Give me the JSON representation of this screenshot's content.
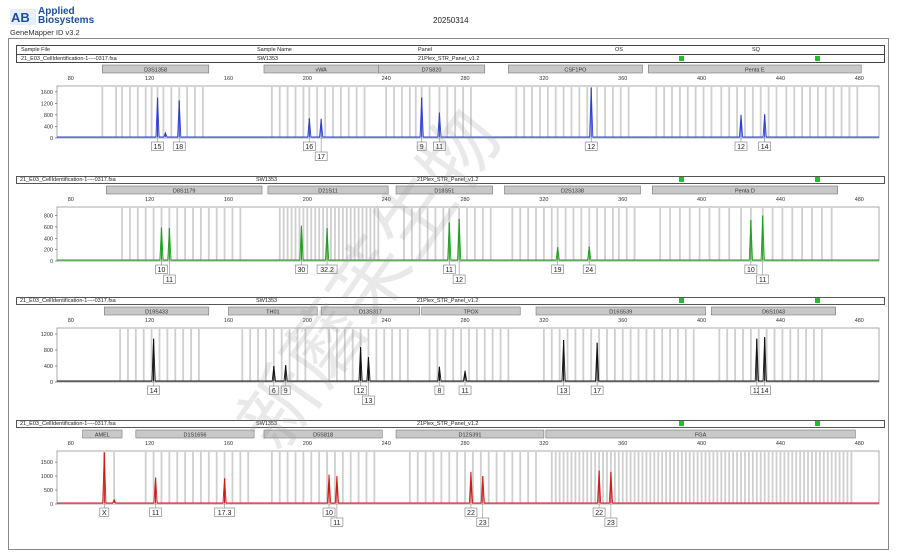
{
  "header": {
    "logo_text_line1": "Applied",
    "logo_text_line2": "Biosystems",
    "logo_mark": "AB",
    "app_version": "GeneMapper ID v3.2",
    "report_date": "20250314",
    "columns": {
      "sample_file": "Sample File",
      "sample_name": "Sample Name",
      "panel": "Panel",
      "os": "OS",
      "sq": "SQ"
    },
    "sample_file": "21_E03_CellIdentification-1----0317.fsa",
    "sample_name": "SW1353",
    "panel_name": "21Plex_STR_Panel_v1.2",
    "status_color": "#22c12a"
  },
  "watermark_text": "新蘑苿生物",
  "chart_data": [
    {
      "type": "line",
      "dye": "blue",
      "color": "#2b3fd6",
      "sample_file": "21_E03_CellIdentification-1----0317.fsa",
      "sample_name": "SW1353",
      "panel": "21Plex_STR_Panel_v1.2",
      "x_ticks": [
        80,
        120,
        160,
        200,
        240,
        280,
        320,
        360,
        400,
        440,
        480
      ],
      "xlim": [
        73,
        490
      ],
      "y_ticks": [
        0,
        400,
        800,
        1200,
        1600
      ],
      "ylim": [
        0,
        1800
      ],
      "loci": [
        {
          "name": "D3S1358",
          "start": 96,
          "end": 150
        },
        {
          "name": "vWA",
          "start": 178,
          "end": 236
        },
        {
          "name": "D7S820",
          "start": 236,
          "end": 290
        },
        {
          "name": "CSF1PO",
          "start": 302,
          "end": 370
        },
        {
          "name": "Penta E",
          "start": 373,
          "end": 481
        }
      ],
      "peaks": [
        {
          "x": 124,
          "height": 1400
        },
        {
          "x": 128,
          "height": 180
        },
        {
          "x": 135,
          "height": 1300
        },
        {
          "x": 201,
          "height": 680
        },
        {
          "x": 207,
          "height": 660
        },
        {
          "x": 258,
          "height": 1400
        },
        {
          "x": 267,
          "height": 880
        },
        {
          "x": 344,
          "height": 1750
        },
        {
          "x": 420,
          "height": 800
        },
        {
          "x": 432,
          "height": 820
        }
      ],
      "allele_labels": [
        {
          "x": 124,
          "label": "15",
          "row": 0
        },
        {
          "x": 135,
          "label": "18",
          "row": 0
        },
        {
          "x": 201,
          "label": "16",
          "row": 0
        },
        {
          "x": 207,
          "label": "17",
          "row": 1
        },
        {
          "x": 258,
          "label": "9",
          "row": 0
        },
        {
          "x": 267,
          "label": "11",
          "row": 0
        },
        {
          "x": 344,
          "label": "12",
          "row": 0
        },
        {
          "x": 420,
          "label": "12",
          "row": 0
        },
        {
          "x": 432,
          "label": "14",
          "row": 0
        }
      ],
      "bins": [
        96,
        103,
        106,
        110,
        114,
        118,
        121,
        124,
        127,
        131,
        135,
        139,
        143,
        147,
        182,
        186,
        190,
        194,
        198,
        201,
        205,
        209,
        213,
        217,
        221,
        225,
        229,
        240,
        244,
        248,
        252,
        255,
        258,
        262,
        267,
        271,
        275,
        279,
        283,
        306,
        310,
        314,
        318,
        322,
        326,
        330,
        334,
        338,
        342,
        347,
        351,
        355,
        359,
        363,
        377,
        381,
        385,
        389,
        393,
        397,
        401,
        405,
        410,
        414,
        418,
        422,
        426,
        430,
        434,
        438,
        443,
        447,
        451,
        455,
        459,
        463,
        467,
        471,
        475,
        479
      ]
    },
    {
      "type": "line",
      "dye": "green",
      "color": "#1aa21a",
      "sample_file": "21_E03_CellIdentification-1----0317.fsa",
      "sample_name": "SW1353",
      "panel": "21Plex_STR_Panel_v1.2",
      "x_ticks": [
        80,
        120,
        160,
        200,
        240,
        280,
        320,
        360,
        400,
        440,
        480
      ],
      "xlim": [
        73,
        490
      ],
      "y_ticks": [
        0,
        200,
        400,
        600,
        800
      ],
      "ylim": [
        0,
        950
      ],
      "loci": [
        {
          "name": "D8S1179",
          "start": 98,
          "end": 177
        },
        {
          "name": "D21S11",
          "start": 180,
          "end": 241
        },
        {
          "name": "D18S51",
          "start": 245,
          "end": 294
        },
        {
          "name": "D2S1338",
          "start": 300,
          "end": 369
        },
        {
          "name": "Penta D",
          "start": 375,
          "end": 469
        }
      ],
      "peaks": [
        {
          "x": 126,
          "height": 590
        },
        {
          "x": 130,
          "height": 580
        },
        {
          "x": 197,
          "height": 620
        },
        {
          "x": 210,
          "height": 580
        },
        {
          "x": 272,
          "height": 680
        },
        {
          "x": 277,
          "height": 740
        },
        {
          "x": 327,
          "height": 240
        },
        {
          "x": 343,
          "height": 250
        },
        {
          "x": 425,
          "height": 720
        },
        {
          "x": 431,
          "height": 800
        }
      ],
      "allele_labels": [
        {
          "x": 126,
          "label": "10",
          "row": 0
        },
        {
          "x": 130,
          "label": "11",
          "row": 1
        },
        {
          "x": 197,
          "label": "30",
          "row": 0
        },
        {
          "x": 210,
          "label": "32.2",
          "row": 0
        },
        {
          "x": 272,
          "label": "11",
          "row": 0
        },
        {
          "x": 277,
          "label": "12",
          "row": 1
        },
        {
          "x": 327,
          "label": "19",
          "row": 0
        },
        {
          "x": 343,
          "label": "24",
          "row": 0
        },
        {
          "x": 425,
          "label": "10",
          "row": 0
        },
        {
          "x": 431,
          "label": "11",
          "row": 1
        }
      ],
      "bins": [
        106,
        110,
        114,
        118,
        122,
        126,
        130,
        134,
        138,
        142,
        146,
        150,
        154,
        158,
        162,
        166,
        186,
        188,
        190,
        192,
        194,
        196,
        198,
        200,
        202,
        204,
        206,
        208,
        210,
        212,
        214,
        216,
        218,
        220,
        222,
        224,
        226,
        228,
        230,
        232,
        234,
        236,
        249,
        253,
        257,
        261,
        265,
        269,
        272,
        277,
        281,
        285,
        289,
        293,
        304,
        308,
        312,
        316,
        320,
        324,
        327,
        331,
        335,
        339,
        343,
        347,
        351,
        355,
        358,
        362,
        366,
        379,
        384,
        389,
        394,
        399,
        404,
        409,
        414,
        420,
        425,
        431,
        436,
        441,
        446,
        451,
        456,
        461,
        466
      ]
    },
    {
      "type": "line",
      "dye": "black",
      "color": "#111111",
      "sample_file": "21_E03_CellIdentification-1----0317.fsa",
      "sample_name": "SW1353",
      "panel": "21Plex_STR_Panel_v1.2",
      "x_ticks": [
        80,
        120,
        160,
        200,
        240,
        280,
        320,
        360,
        400,
        440,
        480
      ],
      "xlim": [
        73,
        490
      ],
      "y_ticks": [
        0,
        400,
        800,
        1200
      ],
      "ylim": [
        0,
        1350
      ],
      "loci": [
        {
          "name": "D19S433",
          "start": 97,
          "end": 150
        },
        {
          "name": "TH01",
          "start": 160,
          "end": 205
        },
        {
          "name": "D13S317",
          "start": 207,
          "end": 257
        },
        {
          "name": "TPOX",
          "start": 258,
          "end": 308
        },
        {
          "name": "D16S539",
          "start": 316,
          "end": 402
        },
        {
          "name": "D6S1043",
          "start": 405,
          "end": 468
        }
      ],
      "peaks": [
        {
          "x": 122,
          "height": 1080
        },
        {
          "x": 183,
          "height": 400
        },
        {
          "x": 189,
          "height": 420
        },
        {
          "x": 227,
          "height": 870
        },
        {
          "x": 231,
          "height": 620
        },
        {
          "x": 267,
          "height": 380
        },
        {
          "x": 280,
          "height": 280
        },
        {
          "x": 330,
          "height": 1050
        },
        {
          "x": 347,
          "height": 980
        },
        {
          "x": 428,
          "height": 1080
        },
        {
          "x": 432,
          "height": 1120
        }
      ],
      "allele_labels": [
        {
          "x": 122,
          "label": "14",
          "row": 0
        },
        {
          "x": 183,
          "label": "6",
          "row": 0
        },
        {
          "x": 189,
          "label": "9",
          "row": 0
        },
        {
          "x": 227,
          "label": "12",
          "row": 0
        },
        {
          "x": 231,
          "label": "13",
          "row": 1
        },
        {
          "x": 267,
          "label": "8",
          "row": 0
        },
        {
          "x": 280,
          "label": "11",
          "row": 0
        },
        {
          "x": 330,
          "label": "13",
          "row": 0
        },
        {
          "x": 347,
          "label": "17",
          "row": 0
        },
        {
          "x": 428,
          "label": "12",
          "row": 0
        },
        {
          "x": 432,
          "label": "14",
          "row": 0
        }
      ],
      "bins": [
        105,
        109,
        113,
        117,
        121,
        125,
        129,
        133,
        137,
        141,
        145,
        167,
        171,
        175,
        179,
        183,
        187,
        191,
        195,
        199,
        211,
        215,
        219,
        223,
        227,
        231,
        235,
        239,
        243,
        247,
        251,
        262,
        266,
        270,
        274,
        278,
        282,
        286,
        290,
        294,
        298,
        302,
        320,
        324,
        328,
        332,
        336,
        340,
        344,
        348,
        352,
        356,
        360,
        364,
        368,
        372,
        376,
        380,
        384,
        388,
        392,
        396,
        409,
        413,
        417,
        421,
        425,
        429,
        433,
        437,
        441,
        445,
        449,
        453,
        457,
        461
      ]
    },
    {
      "type": "line",
      "dye": "red",
      "color": "#d11a1a",
      "sample_file": "21_E03_CellIdentification-1----0317.fsa",
      "sample_name": "SW1353",
      "panel": "21Plex_STR_Panel_v1.2",
      "x_ticks": [
        80,
        120,
        160,
        200,
        240,
        280,
        320,
        360,
        400,
        440,
        480
      ],
      "xlim": [
        73,
        490
      ],
      "y_ticks": [
        0,
        500,
        1000,
        1500
      ],
      "ylim": [
        0,
        1900
      ],
      "loci": [
        {
          "name": "AMEL",
          "start": 86,
          "end": 106
        },
        {
          "name": "D1S1656",
          "start": 113,
          "end": 173
        },
        {
          "name": "D5S818",
          "start": 178,
          "end": 238
        },
        {
          "name": "D12S391",
          "start": 245,
          "end": 320
        },
        {
          "name": "FGA",
          "start": 321,
          "end": 478
        }
      ],
      "peaks": [
        {
          "x": 97,
          "height": 1850
        },
        {
          "x": 102,
          "height": 150
        },
        {
          "x": 123,
          "height": 950
        },
        {
          "x": 158,
          "height": 920
        },
        {
          "x": 211,
          "height": 1050
        },
        {
          "x": 215,
          "height": 1000
        },
        {
          "x": 283,
          "height": 1150
        },
        {
          "x": 289,
          "height": 1000
        },
        {
          "x": 348,
          "height": 1200
        },
        {
          "x": 354,
          "height": 1150
        }
      ],
      "allele_labels": [
        {
          "x": 97,
          "label": "X",
          "row": 0
        },
        {
          "x": 123,
          "label": "11",
          "row": 0
        },
        {
          "x": 158,
          "label": "17.3",
          "row": 0
        },
        {
          "x": 211,
          "label": "10",
          "row": 0
        },
        {
          "x": 215,
          "label": "11",
          "row": 1
        },
        {
          "x": 283,
          "label": "22",
          "row": 0
        },
        {
          "x": 289,
          "label": "23",
          "row": 1
        },
        {
          "x": 348,
          "label": "22",
          "row": 0
        },
        {
          "x": 354,
          "label": "23",
          "row": 1
        }
      ],
      "bins": [
        97,
        102,
        118,
        122,
        126,
        130,
        134,
        138,
        142,
        146,
        150,
        154,
        158,
        162,
        166,
        170,
        182,
        186,
        190,
        194,
        198,
        202,
        206,
        210,
        214,
        218,
        222,
        226,
        230,
        234,
        252,
        256,
        260,
        264,
        268,
        272,
        276,
        280,
        284,
        288,
        292,
        296,
        300,
        304,
        308,
        312,
        316,
        324,
        326,
        328,
        330,
        332,
        334,
        336,
        338,
        340,
        342,
        344,
        346,
        348,
        350,
        352,
        354,
        356,
        358,
        360,
        362,
        364,
        366,
        368,
        370,
        372,
        374,
        376,
        378,
        380,
        382,
        384,
        386,
        388,
        390,
        392,
        394,
        396,
        398,
        400,
        402,
        404,
        406,
        408,
        410,
        412,
        414,
        416,
        418,
        420,
        422,
        424,
        426,
        428,
        430,
        432,
        434,
        436,
        438,
        440,
        442,
        444,
        446,
        448,
        450,
        452,
        454,
        456,
        458,
        460,
        462,
        464,
        466,
        468,
        470,
        472,
        474,
        476
      ]
    }
  ]
}
